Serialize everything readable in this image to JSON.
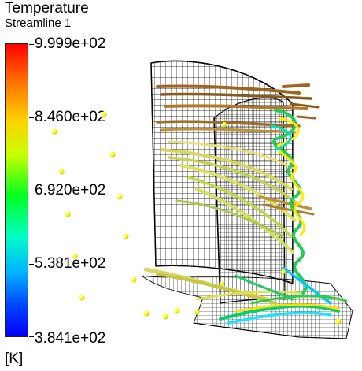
{
  "legend": {
    "title": "Temperature",
    "subtitle": "Streamline 1",
    "ticks": [
      "9.999e+02",
      "8.460e+02",
      "6.920e+02",
      "5.381e+02",
      "3.841e+02"
    ],
    "unit": "[K]"
  },
  "colors": {
    "max": "#ff0000",
    "high": "#ffd200",
    "mid": "#00ff20",
    "low": "#00b4ff",
    "min": "#0000ff",
    "mesh": "#000000",
    "seed_points": "#ffff00"
  }
}
